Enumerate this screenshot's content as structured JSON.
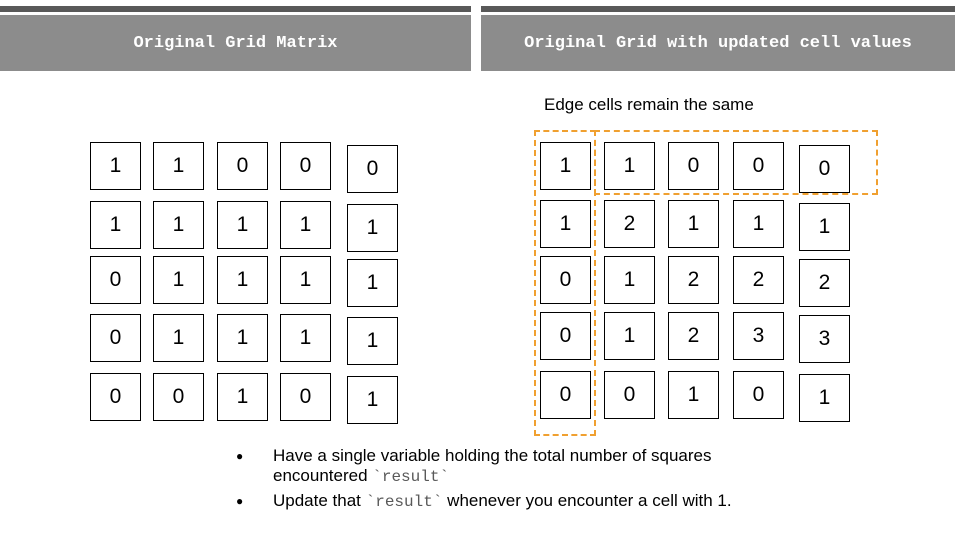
{
  "headers": {
    "left": "Original Grid Matrix",
    "right": "Original Grid with updated cell values"
  },
  "caption": "Edge cells remain the same",
  "original_grid": [
    [
      "1",
      "1",
      "0",
      "0",
      "0"
    ],
    [
      "1",
      "1",
      "1",
      "1",
      "1"
    ],
    [
      "0",
      "1",
      "1",
      "1",
      "1"
    ],
    [
      "0",
      "1",
      "1",
      "1",
      "1"
    ],
    [
      "0",
      "0",
      "1",
      "0",
      "1"
    ]
  ],
  "updated_grid": [
    [
      "1",
      "1",
      "0",
      "0",
      "0"
    ],
    [
      "1",
      "2",
      "1",
      "1",
      "1"
    ],
    [
      "0",
      "1",
      "2",
      "2",
      "2"
    ],
    [
      "0",
      "1",
      "2",
      "3",
      "3"
    ],
    [
      "0",
      "0",
      "1",
      "0",
      "1"
    ]
  ],
  "notes": [
    {
      "pre": "Have a single variable holding the total number of squares encountered ",
      "code": "`result`",
      "post": ""
    },
    {
      "pre": "Update that ",
      "code": "`result`",
      "post": "  whenever you encounter a cell with 1."
    }
  ],
  "colors": {
    "header_bg": "#8c8c8c",
    "topbar": "#595959",
    "highlight": "#f0a030"
  }
}
